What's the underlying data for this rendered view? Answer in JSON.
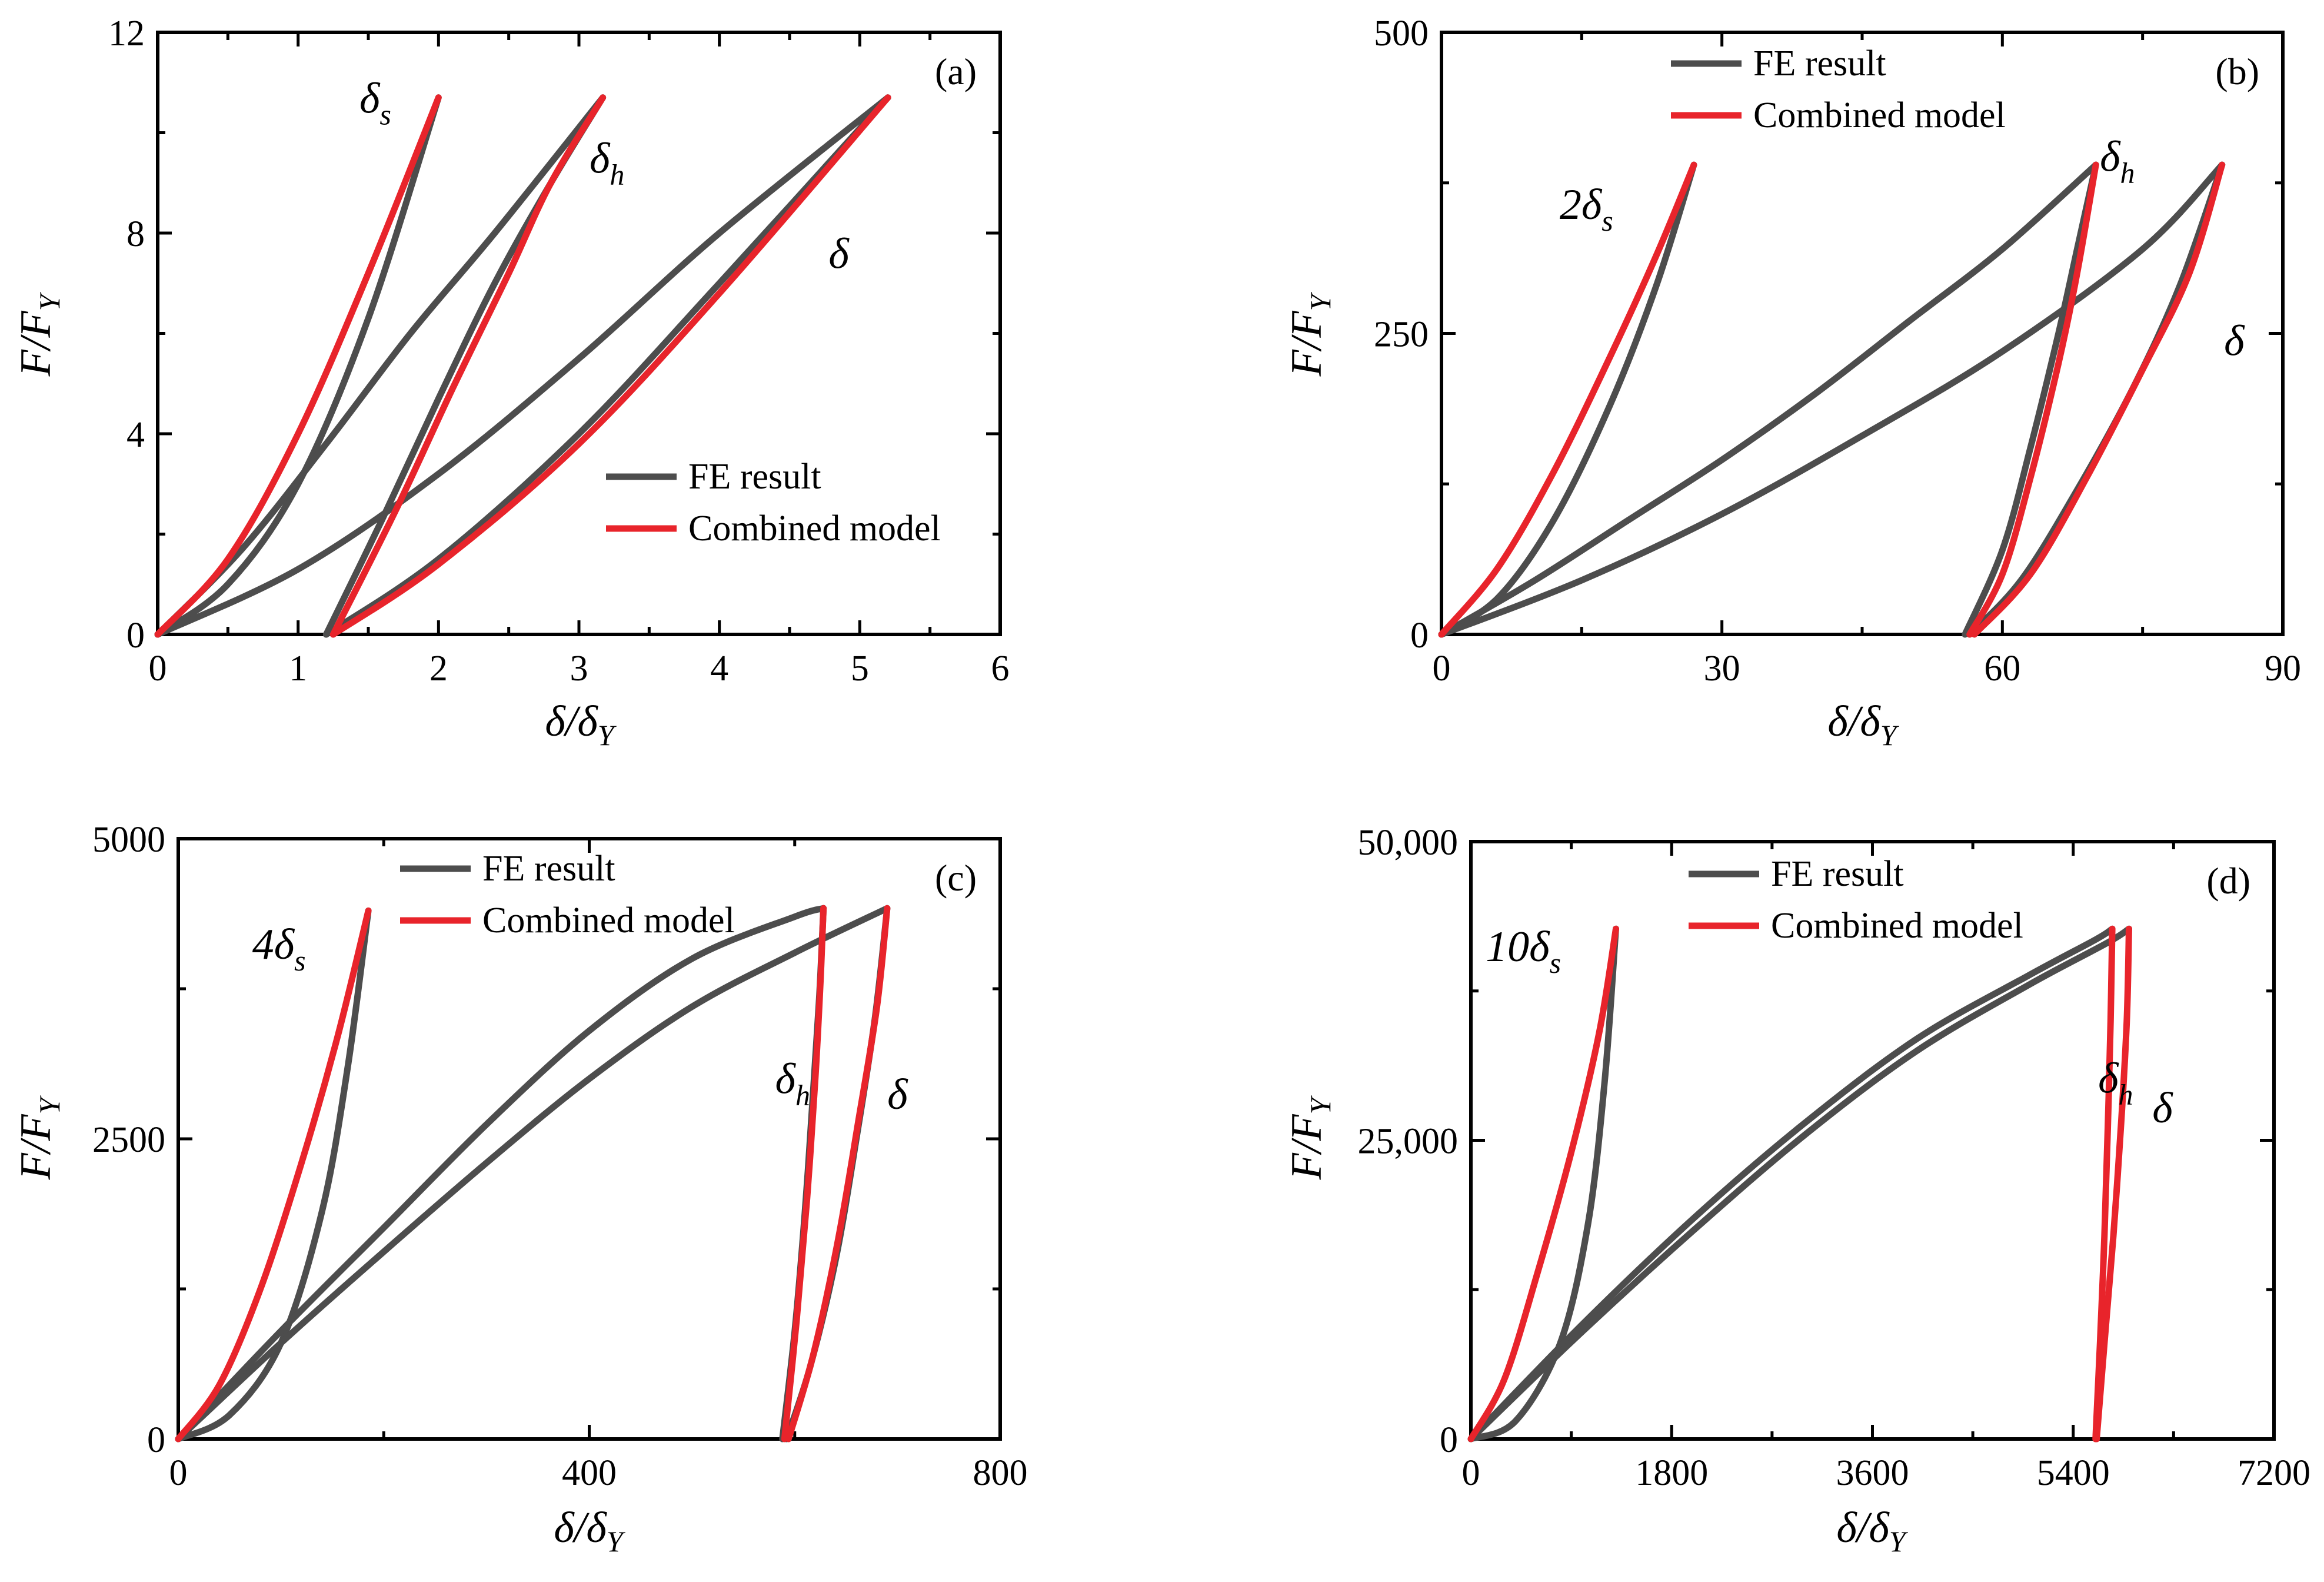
{
  "colors": {
    "fe": "#4d4d4d",
    "model": "#e8242b",
    "axis": "#000000"
  },
  "chart_data": [
    {
      "type": "line",
      "panel_label": "(a)",
      "xlabel": "δ/δY",
      "ylabel": "F/FY",
      "xlim": [
        0,
        6
      ],
      "ylim": [
        0,
        12
      ],
      "xticks": [
        0,
        1,
        2,
        3,
        4,
        5,
        6
      ],
      "xtick_labels": [
        "0",
        "1",
        "2",
        "3",
        "4",
        "5",
        "6"
      ],
      "yticks": [
        0,
        4,
        8,
        12
      ],
      "ytick_labels": [
        "0",
        "4",
        "8",
        "12"
      ],
      "legend_position": "lower-right",
      "legend": [
        "FE result",
        "Combined model"
      ],
      "annotations": [
        {
          "text": "δ",
          "sub": "s",
          "x": 1.55,
          "y": 10.4
        },
        {
          "text": "δ",
          "sub": "h",
          "x": 3.2,
          "y": 9.2
        },
        {
          "text": "δ",
          "sub": "",
          "x": 4.85,
          "y": 7.3
        }
      ],
      "series": [
        {
          "name": "FE result",
          "curves": [
            {
              "x": [
                0,
                0.5,
                1.0,
                1.5,
                2.0
              ],
              "y": [
                0,
                1.0,
                3.0,
                6.3,
                10.7
              ]
            },
            {
              "x": [
                0,
                0.6,
                1.2,
                1.8,
                2.4,
                3.17
              ],
              "y": [
                0,
                1.7,
                3.8,
                6.0,
                8.0,
                10.7
              ]
            },
            {
              "x": [
                1.2,
                1.6,
                2.0,
                2.4,
                2.8,
                3.17
              ],
              "y": [
                0,
                2.3,
                4.7,
                7.0,
                9.0,
                10.7
              ]
            },
            {
              "x": [
                0,
                1.0,
                2.0,
                3.0,
                4.0,
                5.2
              ],
              "y": [
                0,
                1.3,
                3.2,
                5.5,
                8.0,
                10.7
              ]
            },
            {
              "x": [
                1.2,
                2.0,
                3.0,
                4.0,
                5.2
              ],
              "y": [
                0,
                1.5,
                4.0,
                7.0,
                10.7
              ]
            }
          ]
        },
        {
          "name": "Combined model",
          "curves": [
            {
              "x": [
                0,
                0.5,
                1.0,
                1.5,
                2.0
              ],
              "y": [
                0,
                1.5,
                4.0,
                7.2,
                10.7
              ]
            },
            {
              "x": [
                1.25,
                1.7,
                2.1,
                2.5,
                2.8,
                3.17
              ],
              "y": [
                0,
                2.5,
                4.9,
                7.2,
                9.0,
                10.7
              ]
            },
            {
              "x": [
                1.25,
                2.0,
                3.0,
                4.0,
                5.2
              ],
              "y": [
                0,
                1.4,
                3.8,
                6.8,
                10.7
              ]
            }
          ]
        }
      ]
    },
    {
      "type": "line",
      "panel_label": "(b)",
      "xlabel": "δ/δY",
      "ylabel": "F/FY",
      "xlim": [
        0,
        90
      ],
      "ylim": [
        0,
        500
      ],
      "xticks": [
        0,
        30,
        60,
        90
      ],
      "xtick_labels": [
        "0",
        "30",
        "60",
        "90"
      ],
      "yticks": [
        0,
        250,
        500
      ],
      "ytick_labels": [
        "0",
        "250",
        "500"
      ],
      "legend_position": "top-center",
      "legend": [
        "FE result",
        "Combined model"
      ],
      "annotations": [
        {
          "text": "2δ",
          "sub": "s",
          "x": 15.5,
          "y": 345
        },
        {
          "text": "δ",
          "sub": "h",
          "x": 72.3,
          "y": 385
        },
        {
          "text": "δ",
          "sub": "",
          "x": 84.8,
          "y": 232
        }
      ],
      "series": [
        {
          "name": "FE result",
          "curves": [
            {
              "x": [
                0,
                6,
                12,
                18,
                23,
                27
              ],
              "y": [
                0,
                30,
                95,
                190,
                290,
                390
              ]
            },
            {
              "x": [
                0,
                10,
                20,
                30,
                40,
                50,
                60,
                70
              ],
              "y": [
                0,
                45,
                95,
                145,
                200,
                260,
                320,
                390
              ]
            },
            {
              "x": [
                56,
                60,
                63,
                66,
                68,
                70
              ],
              "y": [
                0,
                70,
                155,
                250,
                320,
                390
              ]
            },
            {
              "x": [
                0,
                15,
                30,
                45,
                60,
                75,
                83.5
              ],
              "y": [
                0,
                45,
                100,
                165,
                235,
                320,
                390
              ]
            },
            {
              "x": [
                56.5,
                62,
                68,
                74,
                79,
                83.5
              ],
              "y": [
                0,
                45,
                120,
                205,
                290,
                390
              ]
            }
          ]
        },
        {
          "name": "Combined model",
          "curves": [
            {
              "x": [
                0,
                6,
                12,
                18,
                23,
                27
              ],
              "y": [
                0,
                55,
                135,
                230,
                315,
                390
              ]
            },
            {
              "x": [
                56.5,
                60,
                63,
                66,
                68,
                70
              ],
              "y": [
                0,
                50,
                130,
                225,
                300,
                390
              ]
            },
            {
              "x": [
                57,
                63,
                69,
                75,
                80,
                83.5
              ],
              "y": [
                0,
                50,
                130,
                220,
                300,
                390
              ]
            }
          ]
        }
      ]
    },
    {
      "type": "line",
      "panel_label": "(c)",
      "xlabel": "δ/δY",
      "ylabel": "F/FY",
      "xlim": [
        0,
        800
      ],
      "ylim": [
        0,
        5000
      ],
      "xticks": [
        0,
        400,
        800
      ],
      "xtick_labels": [
        "0",
        "400",
        "800"
      ],
      "yticks": [
        0,
        2500,
        5000
      ],
      "ytick_labels": [
        "0",
        "2500",
        "5000"
      ],
      "legend_position": "top-center",
      "legend": [
        "FE result",
        "Combined model"
      ],
      "annotations": [
        {
          "text": "4δ",
          "sub": "s",
          "x": 98,
          "y": 4000
        },
        {
          "text": "δ",
          "sub": "h",
          "x": 598,
          "y": 2880
        },
        {
          "text": "δ",
          "sub": "",
          "x": 700,
          "y": 2750
        }
      ],
      "series": [
        {
          "name": "FE result",
          "curves": [
            {
              "x": [
                0,
                50,
                100,
                140,
                165,
                185
              ],
              "y": [
                0,
                200,
                800,
                1900,
                3100,
                4400
              ]
            },
            {
              "x": [
                0,
                100,
                200,
                300,
                400,
                500,
                600,
                628
              ],
              "y": [
                0,
                900,
                1760,
                2620,
                3400,
                4000,
                4350,
                4420
              ]
            },
            {
              "x": [
                0,
                100,
                200,
                300,
                400,
                500,
                600,
                690
              ],
              "y": [
                0,
                800,
                1560,
                2300,
                3000,
                3600,
                4050,
                4420
              ]
            },
            {
              "x": [
                588,
                600,
                610,
                618,
                624,
                628
              ],
              "y": [
                0,
                900,
                1900,
                2900,
                3700,
                4420
              ]
            },
            {
              "x": [
                592,
                615,
                640,
                660,
                678,
                690
              ],
              "y": [
                0,
                600,
                1500,
                2500,
                3500,
                4420
              ]
            }
          ]
        },
        {
          "name": "Combined model",
          "curves": [
            {
              "x": [
                0,
                40,
                80,
                120,
                155,
                185
              ],
              "y": [
                0,
                450,
                1250,
                2300,
                3350,
                4400
              ]
            },
            {
              "x": [
                590,
                602,
                612,
                620,
                625,
                628
              ],
              "y": [
                0,
                1000,
                2000,
                3000,
                3800,
                4420
              ]
            },
            {
              "x": [
                594,
                618,
                642,
                662,
                680,
                690
              ],
              "y": [
                0,
                700,
                1650,
                2650,
                3600,
                4420
              ]
            }
          ]
        }
      ]
    },
    {
      "type": "line",
      "panel_label": "(d)",
      "xlabel": "δ/δY",
      "ylabel": "F/FY",
      "xlim": [
        0,
        7200
      ],
      "ylim": [
        0,
        50000
      ],
      "xticks": [
        0,
        1800,
        3600,
        5400,
        7200
      ],
      "xtick_labels": [
        "0",
        "1800",
        "3600",
        "5400",
        "7200"
      ],
      "yticks": [
        0,
        25000,
        50000
      ],
      "ytick_labels": [
        "0",
        "25,000",
        "50,000"
      ],
      "legend_position": "top-center",
      "legend": [
        "FE result",
        "Combined model"
      ],
      "annotations": [
        {
          "text": "10δ",
          "sub": "s",
          "x": 470,
          "y": 40000
        },
        {
          "text": "δ",
          "sub": "h",
          "x": 5780,
          "y": 29000
        },
        {
          "text": "δ",
          "sub": "",
          "x": 6200,
          "y": 26500
        }
      ],
      "series": [
        {
          "name": "FE result",
          "curves": [
            {
              "x": [
                0,
                400,
                800,
                1050,
                1200,
                1300
              ],
              "y": [
                0,
                1500,
                8000,
                18000,
                30000,
                42700
              ]
            },
            {
              "x": [
                0,
                1000,
                2000,
                3000,
                4000,
                5000,
                5600,
                5750
              ],
              "y": [
                0,
                9600,
                18500,
                26500,
                33500,
                38800,
                41800,
                42700
              ]
            },
            {
              "x": [
                0,
                1000,
                2000,
                3000,
                4000,
                5000,
                5700,
                5900
              ],
              "y": [
                0,
                9000,
                17500,
                25500,
                32500,
                38000,
                41500,
                42700
              ]
            }
          ]
        },
        {
          "name": "Combined model",
          "curves": [
            {
              "x": [
                0,
                300,
                600,
                900,
                1150,
                1300
              ],
              "y": [
                0,
                5000,
                14000,
                24000,
                34000,
                42700
              ]
            },
            {
              "x": [
                5600,
                5640,
                5680,
                5710,
                5735,
                5750
              ],
              "y": [
                0,
                8000,
                17000,
                26000,
                35000,
                42700
              ]
            },
            {
              "x": [
                5610,
                5680,
                5760,
                5830,
                5880,
                5900
              ],
              "y": [
                0,
                8000,
                17000,
                26500,
                35000,
                42700
              ]
            }
          ]
        }
      ]
    }
  ]
}
